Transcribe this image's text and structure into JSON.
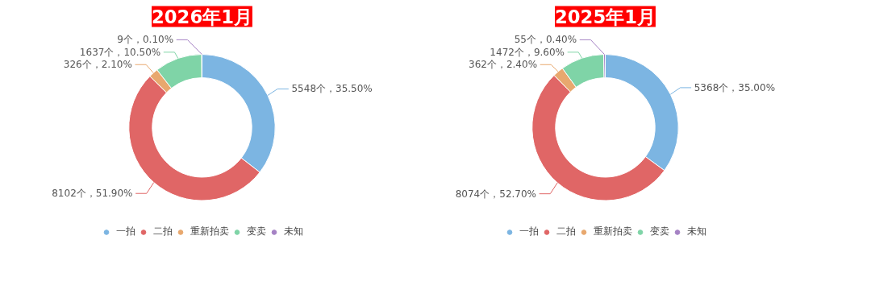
{
  "chart_data": [
    {
      "type": "donut",
      "title": "2026年1月",
      "categories": [
        "一拍",
        "二拍",
        "重新拍卖",
        "变卖",
        "未知"
      ],
      "values": [
        5548,
        8102,
        326,
        1637,
        9
      ],
      "value_labels": [
        "5548个，35.50%",
        "8102个，51.90%",
        "326个，2.10%",
        "1637个，10.50%",
        "9个，0.10%"
      ],
      "colors": [
        "#7cb5e2",
        "#e06666",
        "#e8a86e",
        "#7fd4a7",
        "#a582c4"
      ],
      "legend": "bottom"
    },
    {
      "type": "donut",
      "title": "2025年1月",
      "categories": [
        "一拍",
        "二拍",
        "重新拍卖",
        "变卖",
        "未知"
      ],
      "values": [
        5368,
        8074,
        362,
        1472,
        55
      ],
      "value_labels": [
        "5368个，35.00%",
        "8074个，52.70%",
        "362个，2.40%",
        "1472个，9.60%",
        "55个，0.40%"
      ],
      "colors": [
        "#7cb5e2",
        "#e06666",
        "#e8a86e",
        "#7fd4a7",
        "#a582c4"
      ],
      "legend": "bottom"
    }
  ]
}
